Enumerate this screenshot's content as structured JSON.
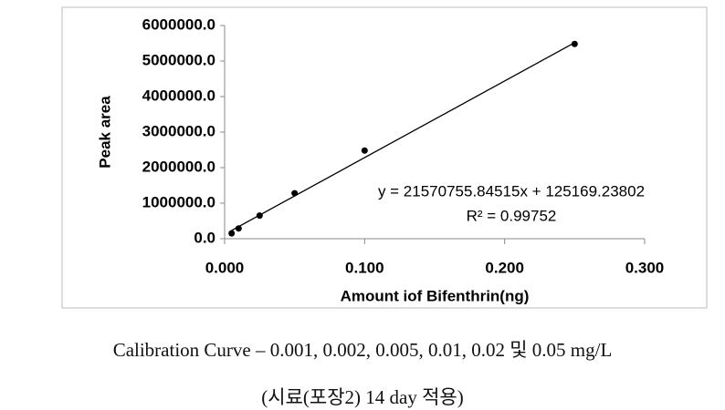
{
  "chart_data": {
    "type": "scatter",
    "x_label": "Amount iof Bifenthrin(ng)",
    "y_label": "Peak area",
    "x": [
      0.005,
      0.01,
      0.025,
      0.05,
      0.1,
      0.25
    ],
    "values": [
      150000,
      290000,
      650000,
      1280000,
      2480000,
      5480000
    ],
    "color": "#000000",
    "trendline": {
      "slope": 21570755.84515,
      "intercept": 125169.23802
    },
    "annotations": [
      "y = 21570755.84515x + 125169.23802",
      "R² = 0.99752"
    ],
    "xlim": [
      0,
      0.3
    ],
    "xticks": [
      {
        "value": 0,
        "label": "0.000"
      },
      {
        "value": 0.1,
        "label": "0.100"
      },
      {
        "value": 0.2,
        "label": "0.200"
      },
      {
        "value": 0.3,
        "label": "0.300"
      }
    ],
    "ylim": [
      0,
      6000000
    ],
    "yticks": [
      {
        "value": 0,
        "label": "0.0"
      },
      {
        "value": 1000000,
        "label": "1000000.0"
      },
      {
        "value": 2000000,
        "label": "2000000.0"
      },
      {
        "value": 3000000,
        "label": "3000000.0"
      },
      {
        "value": 4000000,
        "label": "4000000.0"
      },
      {
        "value": 5000000,
        "label": "5000000.0"
      },
      {
        "value": 6000000,
        "label": "6000000.0"
      }
    ],
    "grid": false
  },
  "caption": [
    "Calibration Curve – 0.001, 0.002, 0.005, 0.01, 0.02 및 0.05 mg/L",
    "(시료(포장2) 14 day 적용)"
  ]
}
